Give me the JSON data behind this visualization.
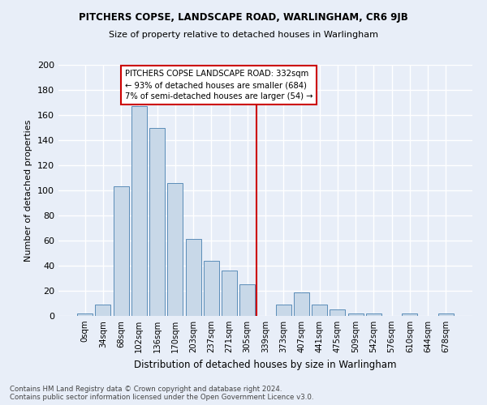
{
  "title": "PITCHERS COPSE, LANDSCAPE ROAD, WARLINGHAM, CR6 9JB",
  "subtitle": "Size of property relative to detached houses in Warlingham",
  "xlabel": "Distribution of detached houses by size in Warlingham",
  "ylabel": "Number of detached properties",
  "bar_labels": [
    "0sqm",
    "34sqm",
    "68sqm",
    "102sqm",
    "136sqm",
    "170sqm",
    "203sqm",
    "237sqm",
    "271sqm",
    "305sqm",
    "339sqm",
    "373sqm",
    "407sqm",
    "441sqm",
    "475sqm",
    "509sqm",
    "542sqm",
    "576sqm",
    "610sqm",
    "644sqm",
    "678sqm"
  ],
  "bar_values": [
    2,
    9,
    103,
    167,
    150,
    106,
    61,
    44,
    36,
    25,
    0,
    9,
    19,
    9,
    5,
    2,
    2,
    0,
    2,
    0,
    2
  ],
  "bar_color": "#c8d8e8",
  "bar_edge_color": "#5b8db8",
  "background_color": "#e8eef8",
  "grid_color": "#ffffff",
  "annotation_text_line1": "PITCHERS COPSE LANDSCAPE ROAD: 332sqm",
  "annotation_text_line2": "← 93% of detached houses are smaller (684)",
  "annotation_text_line3": "7% of semi-detached houses are larger (54) →",
  "annotation_box_color": "#ffffff",
  "annotation_border_color": "#cc0000",
  "vline_color": "#cc0000",
  "footer_text": "Contains HM Land Registry data © Crown copyright and database right 2024.\nContains public sector information licensed under the Open Government Licence v3.0.",
  "ylim": [
    0,
    200
  ],
  "yticks": [
    0,
    20,
    40,
    60,
    80,
    100,
    120,
    140,
    160,
    180,
    200
  ]
}
